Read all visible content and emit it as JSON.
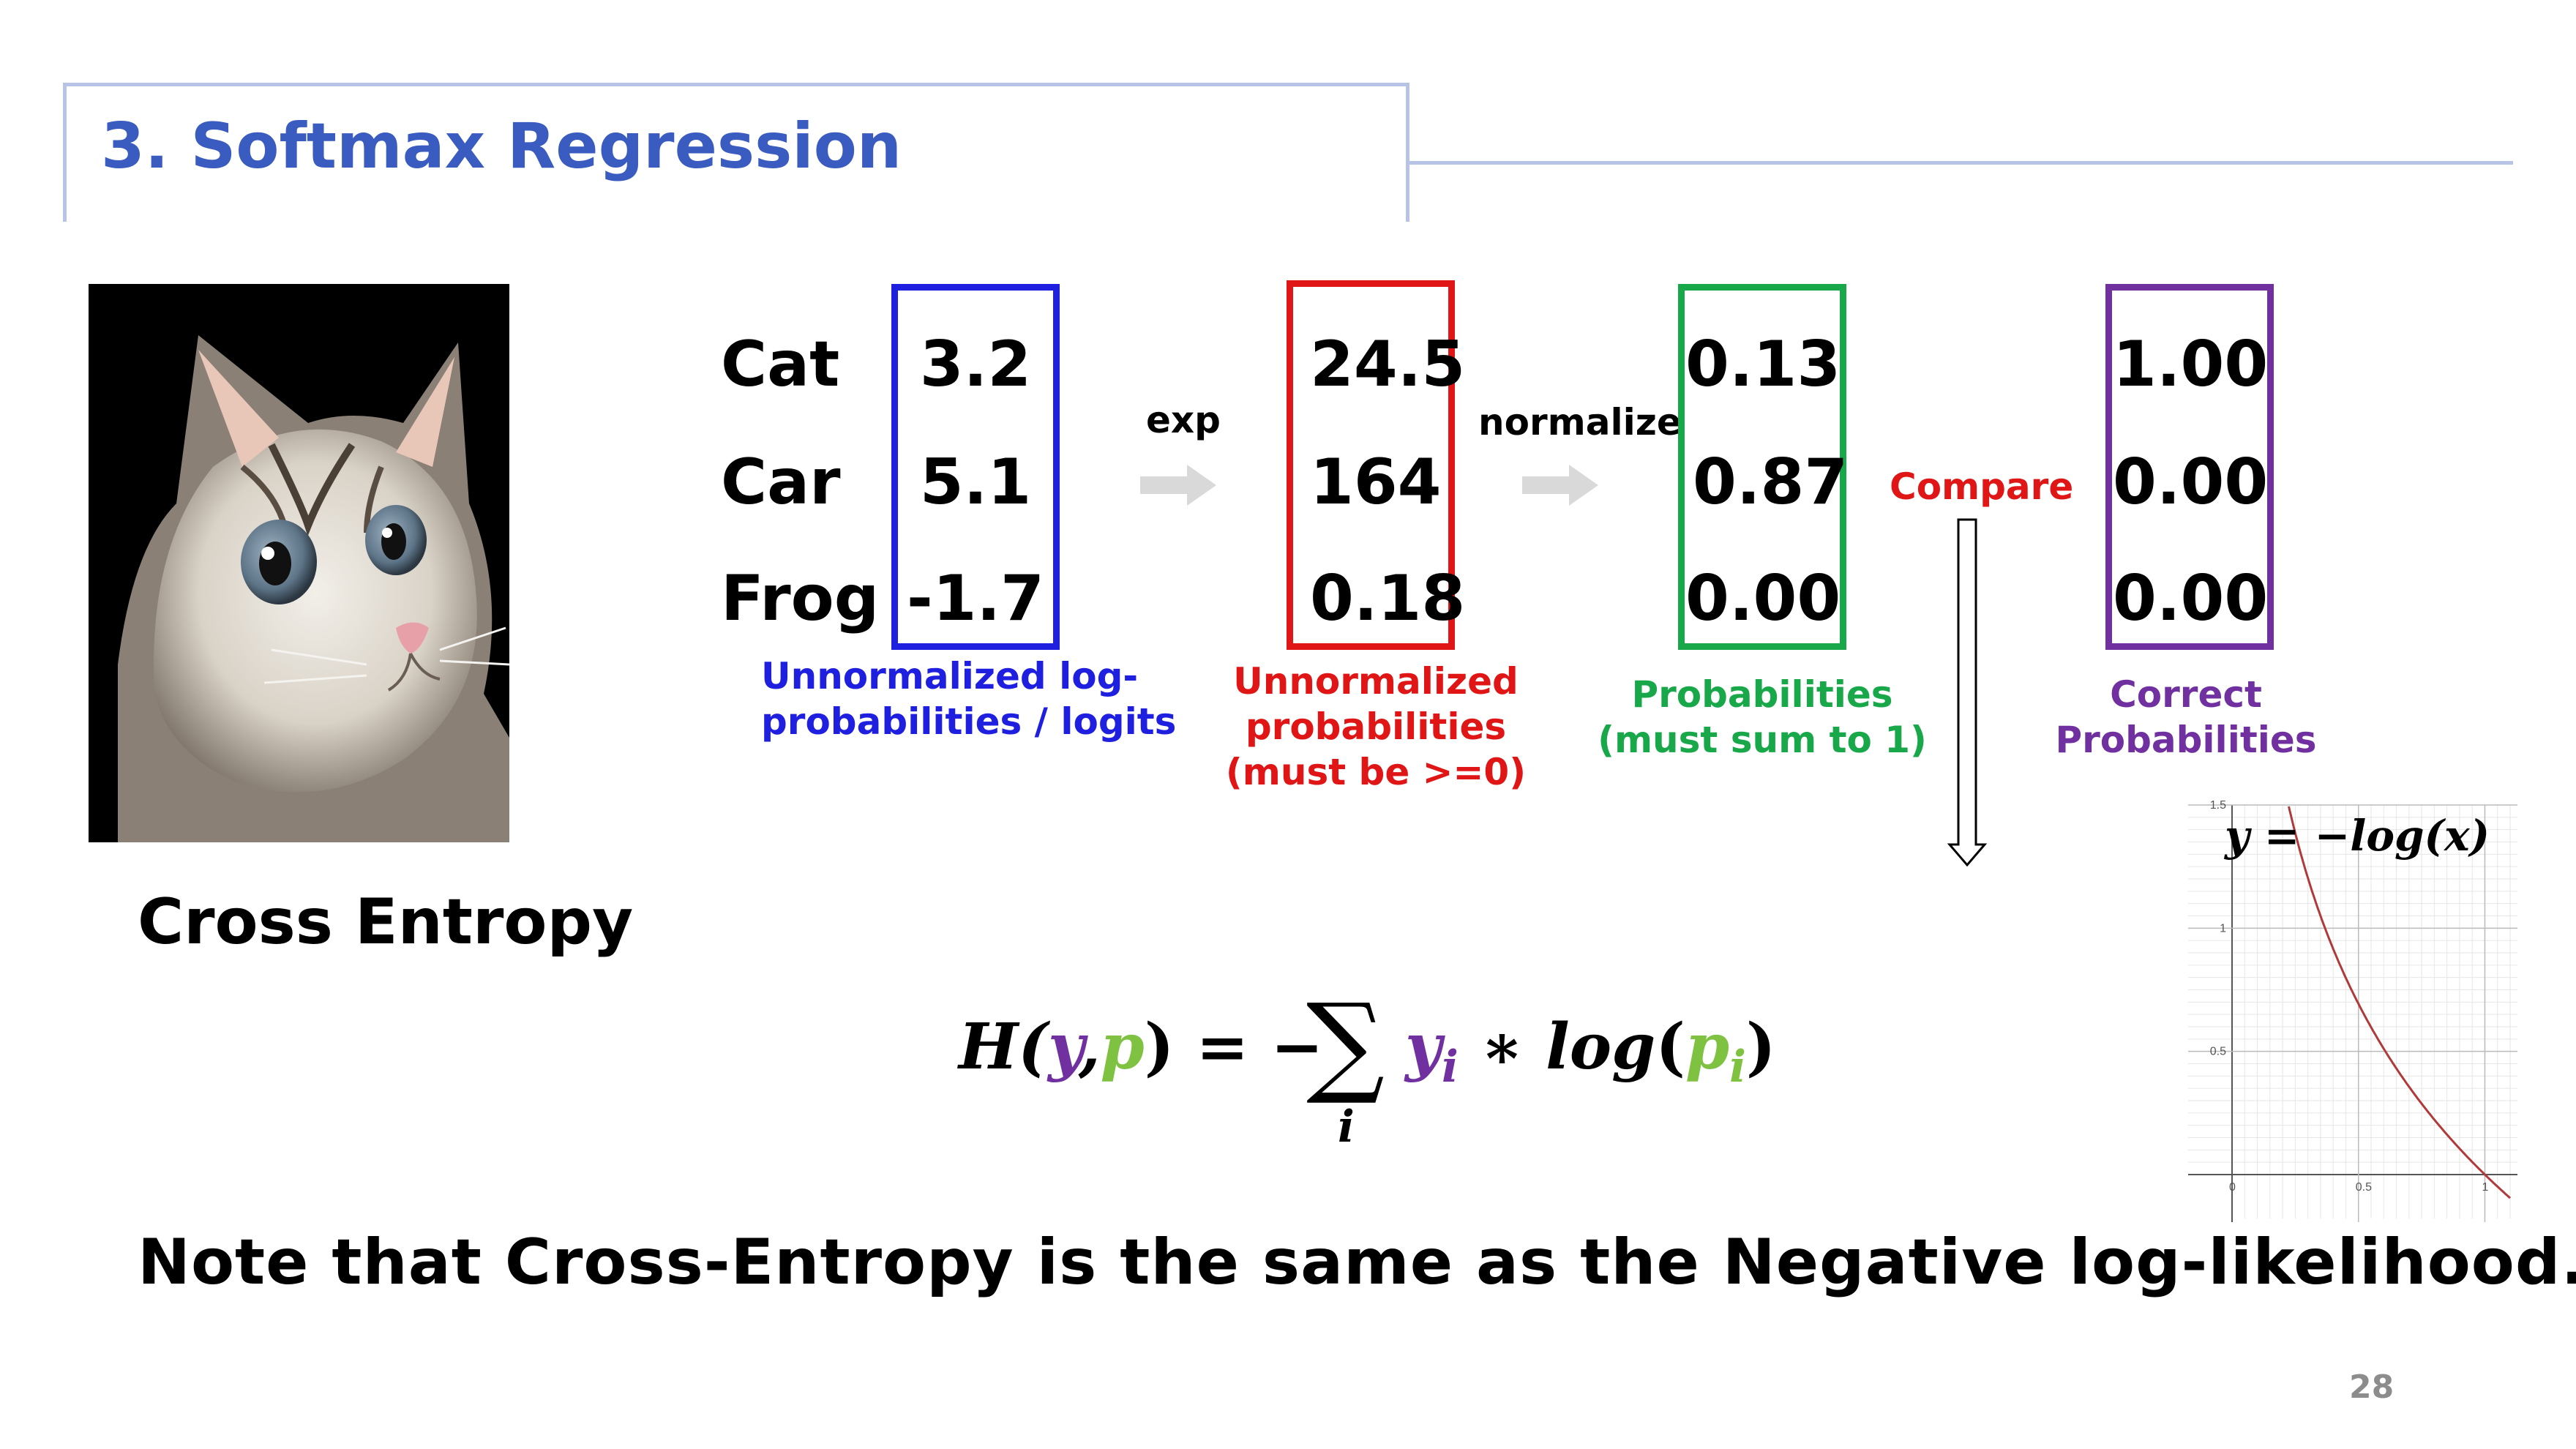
{
  "slide": {
    "title": "3. Softmax Regression",
    "page_number": "28"
  },
  "rows": {
    "labels": [
      "Cat",
      "Car",
      "Frog"
    ]
  },
  "columns": [
    {
      "values": [
        "3.2",
        "5.1",
        "-1.7"
      ],
      "caption": [
        "Unnormalized log-",
        "probabilities / logits"
      ],
      "color": "#1f1fe0"
    },
    {
      "values": [
        "24.5",
        "164",
        "0.18"
      ],
      "caption": [
        "Unnormalized",
        "probabilities",
        "(must be >=0)"
      ],
      "color": "#e01515"
    },
    {
      "values": [
        "0.13",
        "0.87",
        "0.00"
      ],
      "caption": [
        "Probabilities",
        "(must sum to 1)"
      ],
      "color": "#18a84a"
    },
    {
      "values": [
        "1.00",
        "0.00",
        "0.00"
      ],
      "caption": [
        "Correct",
        "Probabilities"
      ],
      "color": "#7030a0"
    }
  ],
  "arrows": {
    "exp": "exp",
    "normalize": "normalize",
    "compare": "Compare",
    "compare_color": "#e01515"
  },
  "cross_entropy": {
    "heading": "Cross Entropy",
    "note": "Note that Cross-Entropy is the same as the Negative log-likelihood.",
    "y_color": "#7030a0",
    "p_color": "#7fc241"
  },
  "plot": {
    "equation": "y = −log(x)",
    "x_ticks": [
      "0",
      "0.5",
      "1"
    ],
    "y_ticks": [
      "0.5",
      "1",
      "1.5"
    ],
    "xlim": [
      0,
      1.1
    ],
    "ylim": [
      0,
      1.5
    ],
    "curve_color": "#b03a3a"
  }
}
